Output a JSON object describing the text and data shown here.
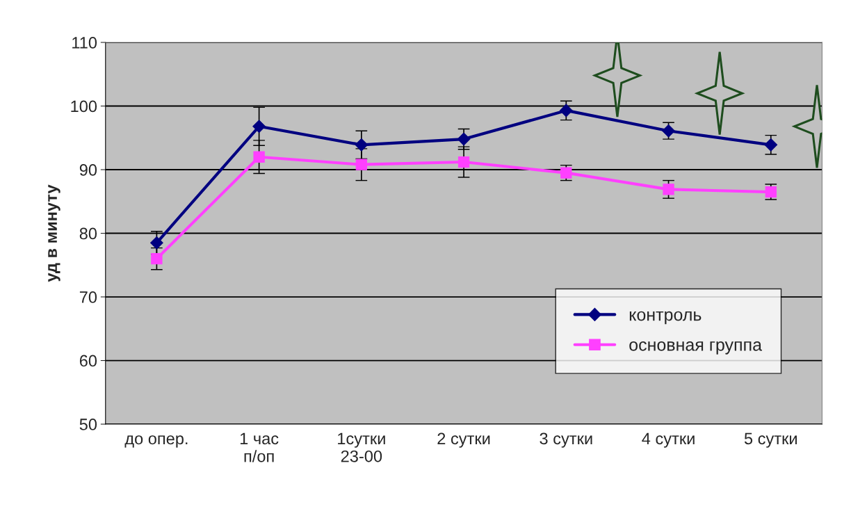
{
  "chart_data": {
    "type": "line",
    "ylabel": "уд в минуту",
    "categories": [
      "до опер.",
      "1 час\nп/оп",
      "1сутки\n23-00",
      "2 сутки",
      "3 сутки",
      "4 сутки",
      "5 сутки"
    ],
    "series": [
      {
        "name": "контроль",
        "color": "#000080",
        "marker": "diamond",
        "values": [
          78.5,
          96.8,
          93.9,
          94.8,
          99.3,
          96.1,
          93.9
        ],
        "errors": [
          1.8,
          3,
          2.2,
          1.6,
          1.5,
          1.3,
          1.5
        ]
      },
      {
        "name": "основная группа",
        "color": "#ff40ff",
        "marker": "square",
        "values": [
          76.0,
          92.0,
          90.8,
          91.2,
          89.5,
          86.9,
          86.5
        ],
        "errors": [
          1.7,
          2.6,
          2.5,
          2.4,
          1.2,
          1.4,
          1.2
        ]
      }
    ],
    "ylim": [
      50,
      110
    ],
    "yticks": [
      50,
      60,
      70,
      80,
      90,
      100,
      110
    ],
    "grid": "y",
    "legend": "bottom right",
    "line_style": "solid"
  }
}
